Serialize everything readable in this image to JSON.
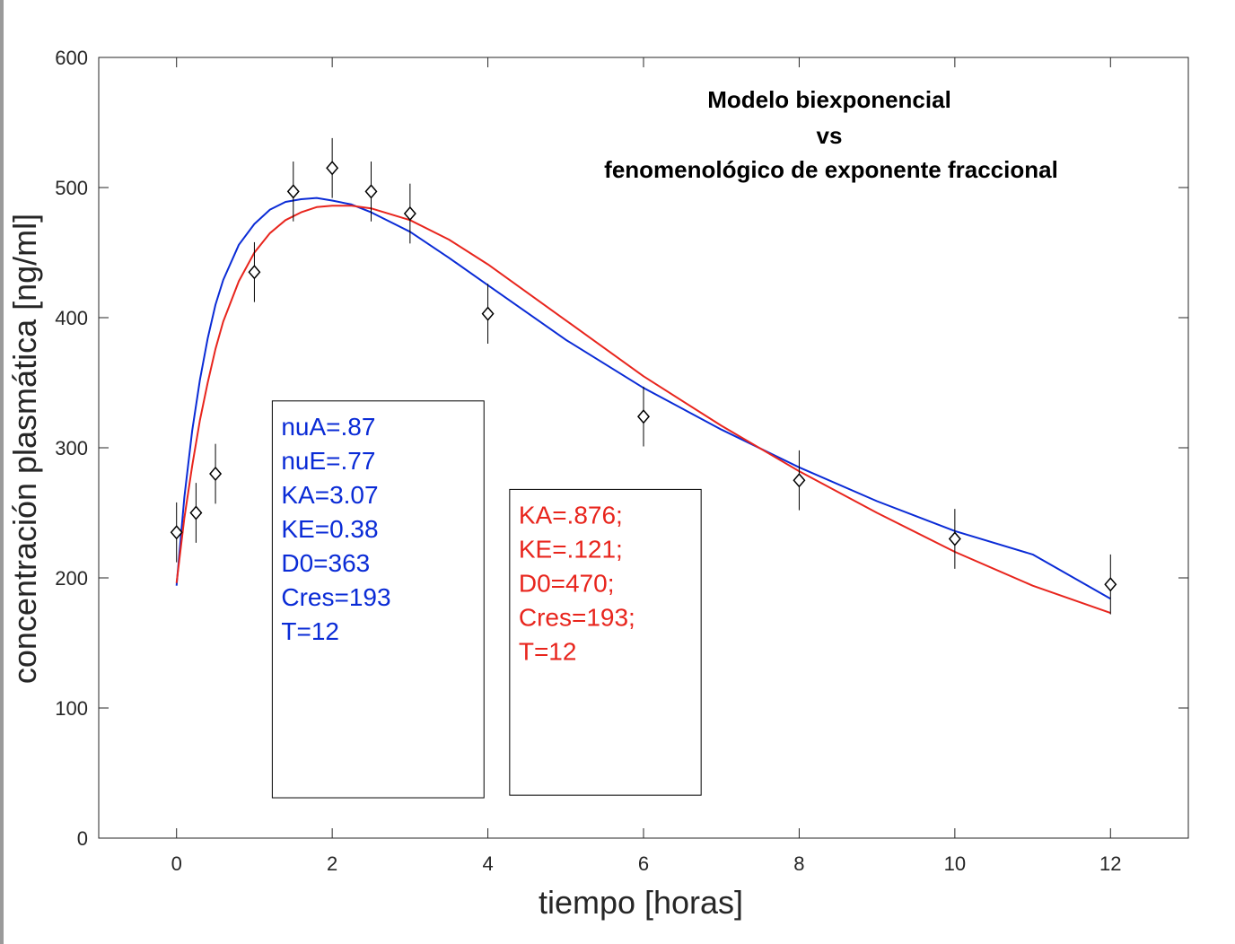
{
  "chart_data": {
    "type": "scatter",
    "title_lines": [
      "Modelo biexponencial",
      "vs",
      "fenomenológico de exponente fraccional"
    ],
    "xlabel": "tiempo [horas]",
    "ylabel": "concentración plasmática [ng/ml]",
    "xlim": [
      -1,
      13
    ],
    "ylim": [
      0,
      600
    ],
    "xticks": [
      0,
      2,
      4,
      6,
      8,
      10,
      12
    ],
    "yticks": [
      0,
      100,
      200,
      300,
      400,
      500,
      600
    ],
    "grid": false,
    "measurements": {
      "marker": "diamond",
      "color": "#000000",
      "x": [
        0,
        0.25,
        0.5,
        1,
        1.5,
        2,
        2.5,
        3,
        4,
        6,
        8,
        10,
        12
      ],
      "y": [
        235,
        250,
        280,
        435,
        497,
        515,
        497,
        480,
        403,
        324,
        275,
        230,
        195
      ],
      "error": [
        23,
        23,
        23,
        23,
        23,
        23,
        23,
        23,
        23,
        23,
        23,
        23,
        23
      ]
    },
    "series": [
      {
        "color": "#0a2bd6",
        "x": [
          0,
          0.1,
          0.2,
          0.3,
          0.4,
          0.5,
          0.6,
          0.8,
          1.0,
          1.2,
          1.4,
          1.6,
          1.8,
          2.0,
          2.25,
          2.5,
          3.0,
          3.5,
          4.0,
          5.0,
          6.0,
          7.0,
          8.0,
          9.0,
          10.0,
          11.0,
          12.0
        ],
        "y": [
          194,
          262,
          313,
          352,
          384,
          410,
          429,
          456,
          472,
          483,
          489,
          491,
          492,
          490,
          487,
          481,
          466,
          446,
          425,
          383,
          346,
          314,
          285,
          259,
          236,
          218,
          184
        ]
      },
      {
        "color": "#e8251d",
        "x": [
          0,
          0.1,
          0.2,
          0.3,
          0.4,
          0.5,
          0.6,
          0.8,
          1.0,
          1.2,
          1.4,
          1.6,
          1.8,
          2.0,
          2.25,
          2.5,
          3.0,
          3.5,
          4.0,
          5.0,
          6.0,
          7.0,
          8.0,
          9.0,
          10.0,
          11.0,
          12.0
        ],
        "y": [
          196,
          246,
          286,
          321,
          350,
          376,
          397,
          428,
          450,
          465,
          475,
          481,
          485,
          486,
          486,
          484,
          475,
          460,
          441,
          398,
          355,
          317,
          282,
          250,
          220,
          194,
          173
        ]
      }
    ],
    "annotations": [
      {
        "color": "#0a2bd6",
        "box": {
          "x": [
            1.23,
            3.95
          ],
          "y": [
            31,
            336
          ]
        },
        "lines": [
          "nuA=.87",
          "nuE=.77",
          "KA=3.07",
          "KE=0.38",
          "D0=363",
          "Cres=193",
          "T=12"
        ]
      },
      {
        "color": "#e8251d",
        "box": {
          "x": [
            4.28,
            6.74
          ],
          "y": [
            33,
            268
          ]
        },
        "lines": [
          "KA=.876;",
          "KE=.121;",
          "D0=470;",
          "Cres=193;",
          "T=12"
        ]
      }
    ]
  }
}
